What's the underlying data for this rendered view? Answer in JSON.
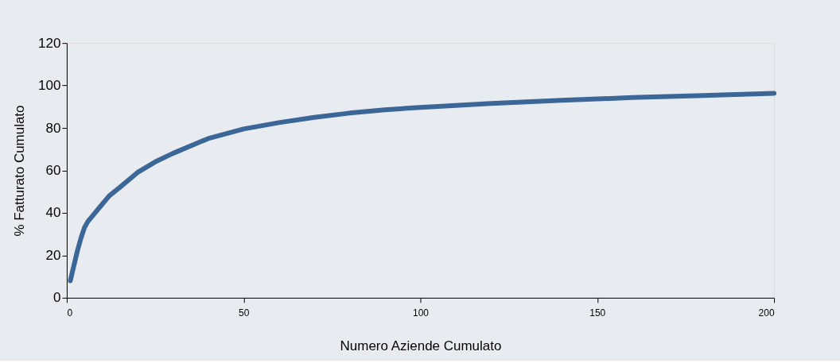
{
  "chart_data": {
    "type": "line",
    "xlabel": "Numero Aziende Cumulato",
    "ylabel": "% Fatturato Cumulato",
    "x": [
      1,
      2,
      3,
      4,
      5,
      6,
      7,
      10,
      12,
      15,
      20,
      25,
      30,
      40,
      50,
      60,
      70,
      80,
      90,
      100,
      120,
      140,
      160,
      180,
      200
    ],
    "series": [
      {
        "color": "#3b6698",
        "values": [
          8,
          15,
          22,
          28,
          33,
          36,
          38,
          44,
          48,
          52,
          59,
          64,
          68,
          75,
          79.5,
          82.5,
          85,
          87,
          88.5,
          89.7,
          91.5,
          93,
          94.3,
          95.3,
          96.3
        ]
      }
    ],
    "xlim": [
      0,
      200
    ],
    "xticks": [
      0,
      50,
      100,
      150,
      200
    ],
    "ylim": [
      0,
      120
    ],
    "yticks": [
      0,
      20,
      40,
      60,
      80,
      100,
      120
    ],
    "grid": false,
    "legend": false,
    "marker": "none",
    "line_style": "solid"
  }
}
